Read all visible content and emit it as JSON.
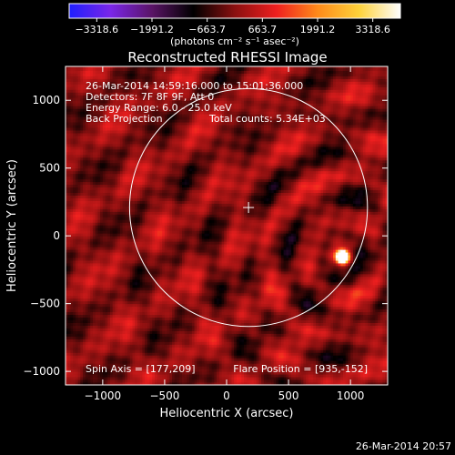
{
  "colorbar": {
    "ticks": [
      "−3318.6",
      "−1991.2",
      "−663.7",
      "663.7",
      "1991.2",
      "3318.6"
    ],
    "unit_label": "(photons cm⁻² s⁻¹ asec⁻²)",
    "stops": [
      "#1f1fff",
      "#7a26e8",
      "#5a1466",
      "#000000",
      "#8a1010",
      "#ee1f1f",
      "#ff8a1a",
      "#ffd23a",
      "#ffffff"
    ]
  },
  "plot": {
    "title": "Reconstructed RHESSI Image",
    "info_lines": [
      "26-Mar-2014 14:59:16.000 to 15:01:36.000",
      "Detectors: 7F 8F 9F, Att 0",
      "Energy Range: 6.0 - 25.0 keV"
    ],
    "method": "Back Projection",
    "total_counts": "Total counts: 5.34E+03",
    "spin_axis": "Spin Axis = [177,209]",
    "flare_position": "Flare Position = [935,-152]"
  },
  "footer": {
    "timestamp": "26-Mar-2014 20:57"
  },
  "chart_data": {
    "type": "heatmap",
    "title": "Reconstructed RHESSI Image",
    "xlabel": "Heliocentric X (arcsec)",
    "ylabel": "Heliocentric Y (arcsec)",
    "xlim": [
      -1300,
      1300
    ],
    "ylim": [
      -1100,
      1250
    ],
    "x_ticks": [
      -1000,
      -500,
      0,
      500,
      1000
    ],
    "y_ticks": [
      -1000,
      -500,
      0,
      500,
      1000
    ],
    "x_tick_labels": [
      "−1000",
      "−500",
      "0",
      "500",
      "1000"
    ],
    "y_tick_labels": [
      "−1000",
      "−500",
      "0",
      "500",
      "1000"
    ],
    "value_range": [
      -3318.6,
      3318.6
    ],
    "solar_disk": {
      "center": [
        177,
        209
      ],
      "radius": 960
    },
    "spin_axis_marker": [
      177,
      209
    ],
    "flare_source": {
      "position": [
        935,
        -152
      ],
      "peak": 3318.6
    },
    "colors": {
      "background": "#000000",
      "limb": "#ffffff",
      "text": "#ffffff"
    }
  }
}
